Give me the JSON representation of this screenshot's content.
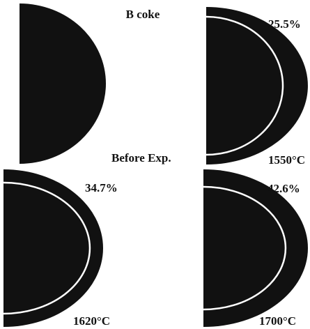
{
  "title": "B coke",
  "panels": [
    {
      "label": "Before Exp."
    },
    {
      "percent": "25.5%",
      "temperature": "1550°C"
    },
    {
      "percent": "34.7%",
      "temperature": "1620°C"
    },
    {
      "percent": "42.6%",
      "temperature": "1700°C"
    }
  ]
}
